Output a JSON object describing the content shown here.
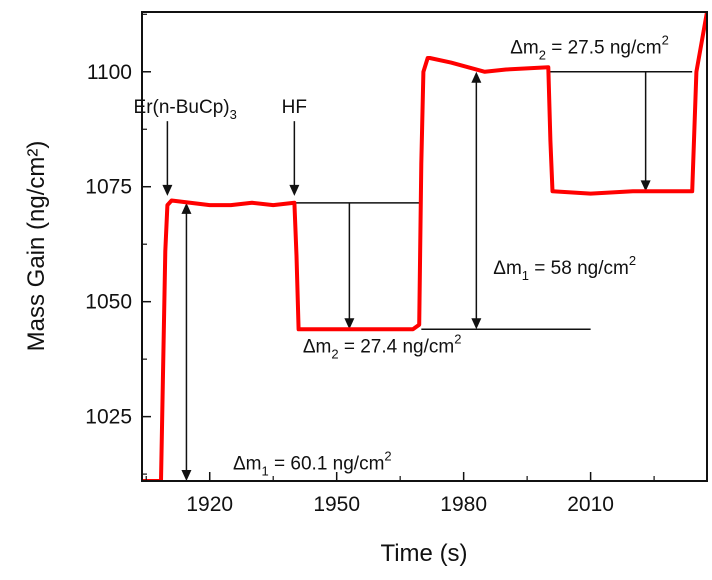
{
  "chart_data": {
    "type": "line",
    "xlabel": "Time (s)",
    "ylabel": "Mass Gain (ng/cm²)",
    "xlim": [
      1904,
      2037.5
    ],
    "ylim": [
      1011,
      1113
    ],
    "x_ticks": [
      1920,
      1950,
      1980,
      2010
    ],
    "x_tick_labels": [
      "1920",
      "1950",
      "1980",
      "2010"
    ],
    "y_ticks": [
      1025,
      1050,
      1075,
      1100
    ],
    "y_tick_labels": [
      "1025",
      "1050",
      "1075",
      "1100"
    ],
    "grid": false,
    "legend": "none",
    "series": [
      {
        "color": "#ff0000",
        "x": [
          1904,
          1908.5,
          1909.5,
          1910,
          1911,
          1920,
          1925,
          1930,
          1935,
          1940,
          1940.5,
          1941,
          1955,
          1968,
          1969.5,
          1970,
          1970.5,
          1971.5,
          1972,
          1977,
          1985,
          1990,
          2000,
          2000.5,
          2001,
          2010,
          2020,
          2034,
          2035,
          2037.5
        ],
        "y": [
          1011,
          1011,
          1061,
          1071,
          1072,
          1071,
          1071,
          1071.5,
          1071,
          1071.5,
          1060,
          1044,
          1044,
          1044,
          1045,
          1080,
          1100,
          1103,
          1103,
          1102,
          1100,
          1100.5,
          1101,
          1085,
          1074,
          1073.5,
          1074,
          1074,
          1100,
          1113
        ]
      }
    ],
    "reference_lines": [
      {
        "y": 1011,
        "x_start": 1904,
        "x_end": 1951
      },
      {
        "y": 1071.5,
        "x_start": 1940,
        "x_end": 1970
      },
      {
        "y": 1044,
        "x_start": 1970,
        "x_end": 2010
      },
      {
        "y": 1100,
        "x_start": 2000,
        "x_end": 2034
      }
    ],
    "arrows": [
      {
        "type": "double",
        "x": 1914.5,
        "y_from": 1071.5,
        "y_to": 1011
      },
      {
        "type": "down",
        "x": 1953,
        "y_from": 1071.5,
        "y_to": 1044
      },
      {
        "type": "double",
        "x": 1983,
        "y_from": 1100,
        "y_to": 1044
      },
      {
        "type": "down",
        "x": 2023,
        "y_from": 1100,
        "y_to": 1074
      }
    ],
    "annotations": [
      {
        "base": "Δm",
        "sub": "1",
        "rest": " = 60.1 ng/cm",
        "sup": "2",
        "x": 1925.5,
        "y": 1013.5
      },
      {
        "base": "Δm",
        "sub": "2",
        "rest": " = 27.4 ng/cm",
        "sup": "2",
        "x": 1942,
        "y": 1039
      },
      {
        "base": "Δm",
        "sub": "1",
        "rest": " = 58 ng/cm",
        "sup": "2",
        "x": 1987,
        "y": 1056
      },
      {
        "base": "Δm",
        "sub": "2",
        "rest": " = 27.5 ng/cm",
        "sup": "2",
        "x": 1991,
        "y": 1104
      }
    ],
    "pulse_labels": [
      {
        "base": "Er(n-BuCp)",
        "sub": "3",
        "x": 1902,
        "y": 1091,
        "arrow_x": 1910,
        "arrow_y_to": 1073
      },
      {
        "base": "HF",
        "sub": "",
        "x": 1937,
        "y": 1091,
        "arrow_x": 1940,
        "arrow_y_to": 1073
      }
    ]
  }
}
